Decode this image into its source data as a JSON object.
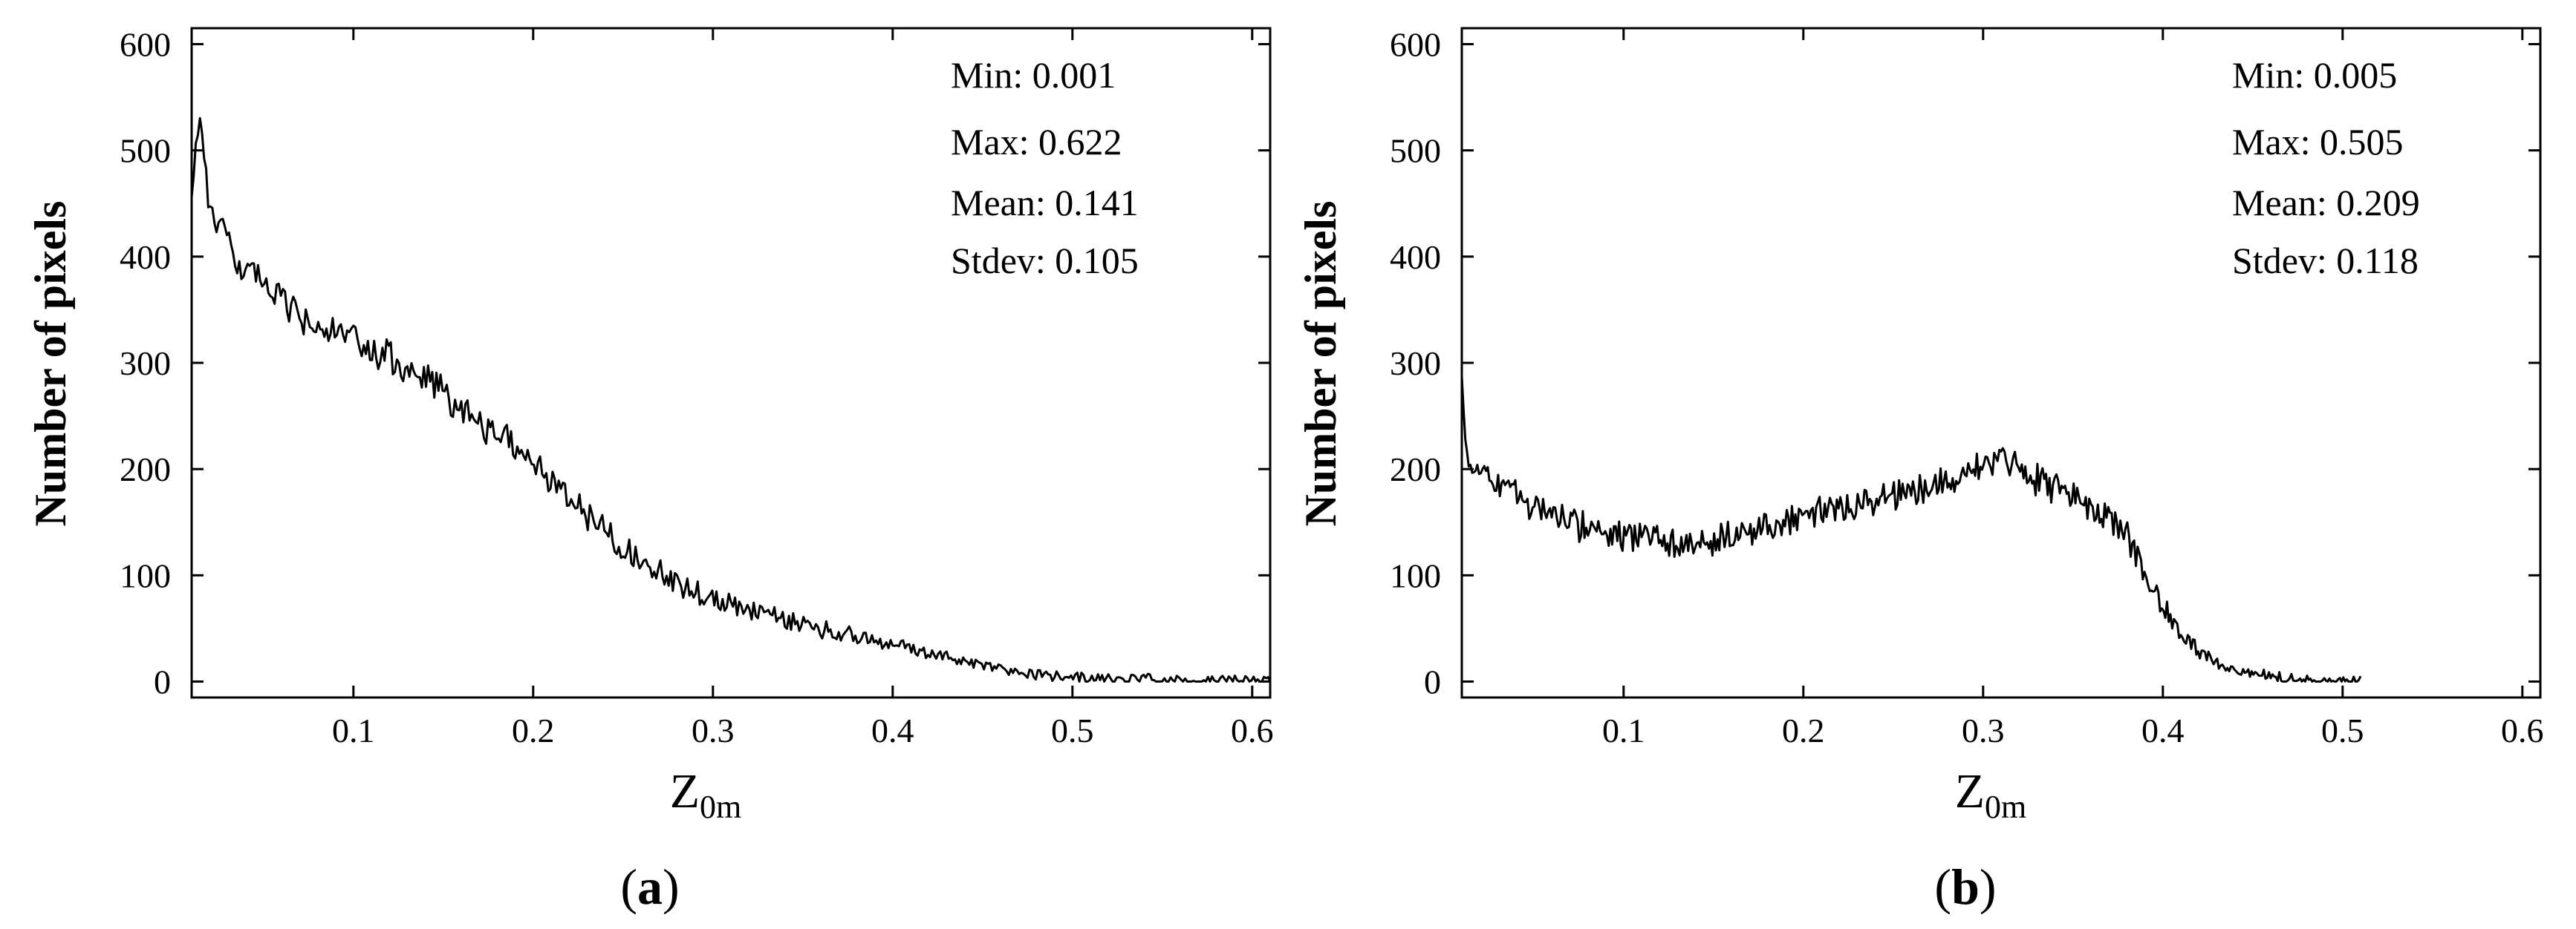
{
  "chart_data": [
    {
      "type": "line",
      "panel_label": "a",
      "title": "",
      "xlabel": "Z",
      "xlabel_sub": "0m",
      "ylabel": "Number of pixels",
      "xlim": [
        0.01,
        0.61
      ],
      "ylim": [
        -15,
        615
      ],
      "xticks": [
        0.1,
        0.2,
        0.3,
        0.4,
        0.5,
        0.6
      ],
      "xtick_labels": [
        "0.1",
        "0.2",
        "0.3",
        "0.4",
        "0.5",
        "0.6"
      ],
      "yticks": [
        0,
        100,
        200,
        300,
        400,
        500,
        600
      ],
      "ytick_labels": [
        "0",
        "100",
        "200",
        "300",
        "400",
        "500",
        "600"
      ],
      "stats": [
        "Min: 0.001",
        "Max: 0.622",
        "Mean: 0.141",
        "Stdev: 0.105"
      ],
      "series": [
        {
          "name": "histogram",
          "x": [
            0.01,
            0.015,
            0.02,
            0.03,
            0.04,
            0.05,
            0.06,
            0.07,
            0.08,
            0.09,
            0.1,
            0.11,
            0.12,
            0.13,
            0.14,
            0.15,
            0.16,
            0.17,
            0.18,
            0.19,
            0.2,
            0.21,
            0.22,
            0.23,
            0.24,
            0.25,
            0.26,
            0.27,
            0.28,
            0.29,
            0.3,
            0.31,
            0.32,
            0.33,
            0.34,
            0.35,
            0.36,
            0.37,
            0.38,
            0.39,
            0.4,
            0.41,
            0.42,
            0.43,
            0.44,
            0.45,
            0.46,
            0.47,
            0.48,
            0.49,
            0.5,
            0.51,
            0.52,
            0.53,
            0.54,
            0.55,
            0.56,
            0.57,
            0.58,
            0.59,
            0.6,
            0.61
          ],
          "y": [
            470,
            530,
            450,
            410,
            385,
            375,
            360,
            340,
            335,
            328,
            320,
            310,
            305,
            292,
            282,
            272,
            258,
            245,
            232,
            222,
            205,
            190,
            172,
            158,
            143,
            128,
            114,
            103,
            92,
            84,
            78,
            72,
            68,
            63,
            58,
            54,
            50,
            46,
            42,
            38,
            35,
            31,
            27,
            24,
            20,
            16,
            12,
            9,
            7,
            5,
            4,
            3,
            3,
            2,
            2,
            2,
            1,
            1,
            1,
            1,
            1,
            1
          ],
          "noise_amplitude": 10
        }
      ]
    },
    {
      "type": "line",
      "panel_label": "b",
      "title": "",
      "xlabel": "Z",
      "xlabel_sub": "0m",
      "ylabel": "Number of pixels",
      "xlim": [
        0.01,
        0.61
      ],
      "ylim": [
        -15,
        615
      ],
      "xticks": [
        0.1,
        0.2,
        0.3,
        0.4,
        0.5,
        0.6
      ],
      "xtick_labels": [
        "0.1",
        "0.2",
        "0.3",
        "0.4",
        "0.5",
        "0.6"
      ],
      "yticks": [
        0,
        100,
        200,
        300,
        400,
        500,
        600
      ],
      "ytick_labels": [
        "0",
        "100",
        "200",
        "300",
        "400",
        "500",
        "600"
      ],
      "stats": [
        "Min: 0.005",
        "Max: 0.505",
        "Mean: 0.209",
        "Stdev: 0.118"
      ],
      "series": [
        {
          "name": "histogram",
          "x": [
            0.01,
            0.012,
            0.015,
            0.02,
            0.03,
            0.04,
            0.05,
            0.06,
            0.07,
            0.08,
            0.09,
            0.1,
            0.11,
            0.12,
            0.13,
            0.14,
            0.15,
            0.16,
            0.17,
            0.18,
            0.19,
            0.2,
            0.21,
            0.22,
            0.23,
            0.24,
            0.25,
            0.26,
            0.27,
            0.28,
            0.29,
            0.3,
            0.31,
            0.32,
            0.33,
            0.34,
            0.35,
            0.36,
            0.37,
            0.38,
            0.39,
            0.4,
            0.41,
            0.42,
            0.43,
            0.44,
            0.45,
            0.46,
            0.47,
            0.48,
            0.49,
            0.5,
            0.51
          ],
          "y": [
            290,
            220,
            205,
            200,
            188,
            175,
            165,
            158,
            150,
            145,
            140,
            137,
            135,
            133,
            132,
            133,
            135,
            138,
            142,
            147,
            152,
            157,
            162,
            166,
            169,
            172,
            175,
            178,
            182,
            188,
            195,
            205,
            208,
            200,
            190,
            182,
            175,
            165,
            155,
            135,
            100,
            70,
            45,
            28,
            18,
            12,
            8,
            5,
            3,
            2,
            1,
            1,
            1
          ],
          "noise_amplitude": 10
        }
      ]
    }
  ]
}
